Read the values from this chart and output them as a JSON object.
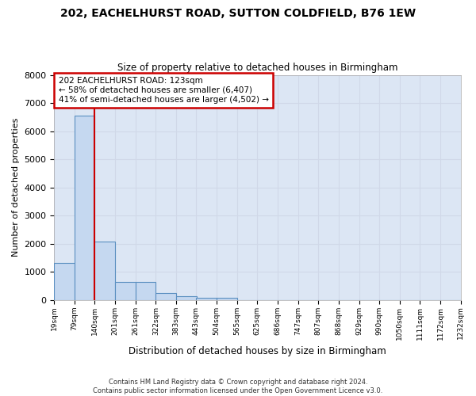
{
  "title_line1": "202, EACHELHURST ROAD, SUTTON COLDFIELD, B76 1EW",
  "title_line2": "Size of property relative to detached houses in Birmingham",
  "xlabel": "Distribution of detached houses by size in Birmingham",
  "ylabel": "Number of detached properties",
  "footer_line1": "Contains HM Land Registry data © Crown copyright and database right 2024.",
  "footer_line2": "Contains public sector information licensed under the Open Government Licence v3.0.",
  "annotation_line1": "202 EACHELHURST ROAD: 123sqm",
  "annotation_line2": "← 58% of detached houses are smaller (6,407)",
  "annotation_line3": "41% of semi-detached houses are larger (4,502) →",
  "bar_left_edges": [
    19,
    79,
    140,
    201,
    261,
    322,
    383,
    443,
    504,
    565,
    625,
    686,
    747,
    807,
    868,
    929,
    990,
    1050,
    1111,
    1172
  ],
  "bar_heights": [
    1310,
    6560,
    2080,
    650,
    650,
    250,
    130,
    80,
    70,
    0,
    0,
    0,
    0,
    0,
    0,
    0,
    0,
    0,
    0,
    0
  ],
  "bin_width": 61,
  "bar_color": "#c5d8f0",
  "bar_edge_color": "#5a8fc0",
  "grid_color": "#d0d8e8",
  "background_color": "#dce6f4",
  "vline_x": 140,
  "vline_color": "#cc0000",
  "ylim": [
    0,
    8000
  ],
  "xlim": [
    19,
    1232
  ],
  "yticks": [
    0,
    1000,
    2000,
    3000,
    4000,
    5000,
    6000,
    7000,
    8000
  ],
  "tick_labels": [
    "19sqm",
    "79sqm",
    "140sqm",
    "201sqm",
    "261sqm",
    "322sqm",
    "383sqm",
    "443sqm",
    "504sqm",
    "565sqm",
    "625sqm",
    "686sqm",
    "747sqm",
    "807sqm",
    "868sqm",
    "929sqm",
    "990sqm",
    "1050sqm",
    "1111sqm",
    "1172sqm",
    "1232sqm"
  ]
}
